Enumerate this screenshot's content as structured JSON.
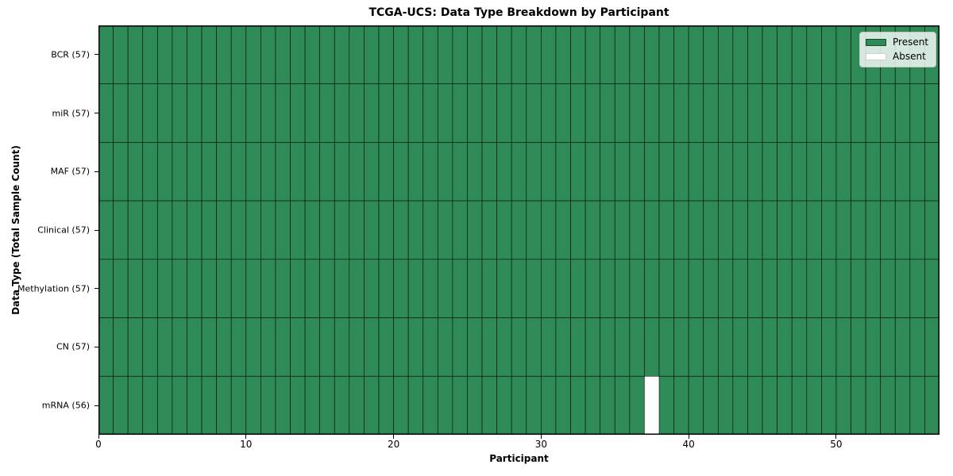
{
  "chart_data": {
    "type": "heatmap",
    "title": "TCGA-UCS: Data Type Breakdown by Participant",
    "xlabel": "Participant",
    "ylabel": "Data Type (Total Sample Count)",
    "x_ticks": [
      0,
      10,
      20,
      30,
      40,
      50
    ],
    "x_range": [
      0,
      57
    ],
    "n_participants": 57,
    "rows": [
      {
        "label": "BCR (57)",
        "present_count": 57,
        "absent_participants": []
      },
      {
        "label": "miR (57)",
        "present_count": 57,
        "absent_participants": []
      },
      {
        "label": "MAF (57)",
        "present_count": 57,
        "absent_participants": []
      },
      {
        "label": "Clinical (57)",
        "present_count": 57,
        "absent_participants": []
      },
      {
        "label": "Methylation (57)",
        "present_count": 57,
        "absent_participants": []
      },
      {
        "label": "CN (57)",
        "present_count": 57,
        "absent_participants": []
      },
      {
        "label": "mRNA (56)",
        "present_count": 56,
        "absent_participants": [
          37
        ]
      }
    ],
    "legend": [
      {
        "label": "Present",
        "color": "#2e8b57"
      },
      {
        "label": "Absent",
        "color": "#ffffff"
      }
    ],
    "legend_position": "upper right",
    "colors": {
      "present": "#2e8b57",
      "absent": "#ffffff",
      "cell_edge": "#000000",
      "spine": "#000000"
    },
    "grid": false
  }
}
